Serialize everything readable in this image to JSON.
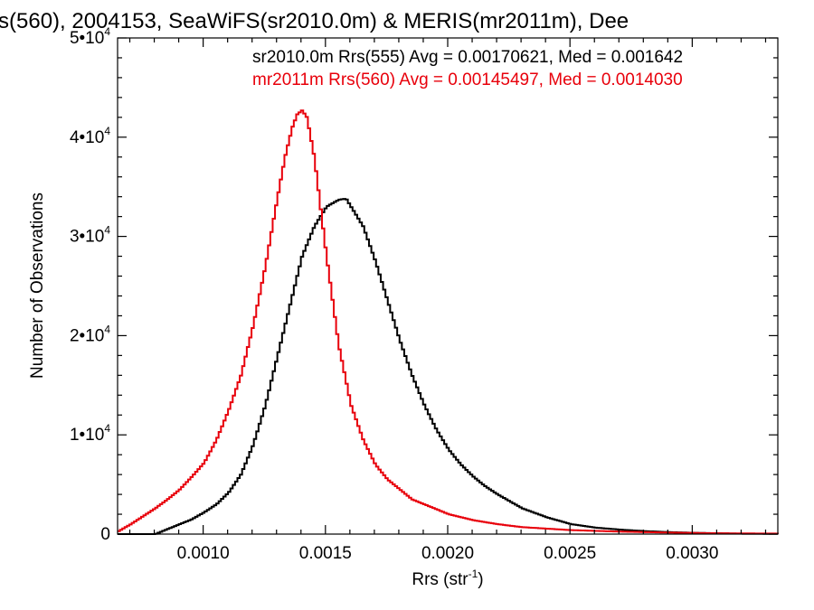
{
  "chart_data": {
    "type": "line",
    "title": "s(560), 2004153, SeaWiFS(sr2010.0m) & MERIS(mr2011m), Dee",
    "xlabel": "Rrs (str",
    "xlabel_sup": "-1",
    "xlabel_end": ")",
    "ylabel": "Number of Observations",
    "xlim": [
      0.00065,
      0.00335
    ],
    "ylim": [
      0,
      50000
    ],
    "x_ticks": [
      {
        "value": 0.001,
        "label": "0.0010"
      },
      {
        "value": 0.0015,
        "label": "0.0015"
      },
      {
        "value": 0.002,
        "label": "0.0020"
      },
      {
        "value": 0.0025,
        "label": "0.0025"
      },
      {
        "value": 0.003,
        "label": "0.0030"
      }
    ],
    "y_ticks": [
      {
        "value": 0,
        "label": "0",
        "exp": ""
      },
      {
        "value": 10000,
        "label": "1•10",
        "exp": "4"
      },
      {
        "value": 20000,
        "label": "2•10",
        "exp": "4"
      },
      {
        "value": 30000,
        "label": "3•10",
        "exp": "4"
      },
      {
        "value": 40000,
        "label": "4•10",
        "exp": "4"
      },
      {
        "value": 50000,
        "label": "5•10",
        "exp": "4"
      }
    ],
    "annotations": [
      {
        "text": "sr2010.0m Rrs(555) Avg = 0.00170621, Med = 0.001642",
        "color": "#000000"
      },
      {
        "text": "mr2011m Rrs(560) Avg = 0.00145497, Med = 0.0014030",
        "color": "#e8000b"
      }
    ],
    "series": [
      {
        "color": "#000000",
        "x": [
          0.00065,
          0.0008,
          0.00085,
          0.0009,
          0.00095,
          0.001,
          0.00105,
          0.0011,
          0.00115,
          0.0012,
          0.00125,
          0.0013,
          0.00135,
          0.0014,
          0.00145,
          0.0015,
          0.00155,
          0.00158,
          0.0016,
          0.00165,
          0.0017,
          0.00175,
          0.0018,
          0.00185,
          0.0019,
          0.00195,
          0.002,
          0.00205,
          0.0021,
          0.00215,
          0.0022,
          0.00225,
          0.0023,
          0.0024,
          0.0025,
          0.0026,
          0.0027,
          0.0028,
          0.0029,
          0.003,
          0.0031,
          0.0032,
          0.00335
        ],
        "y": [
          0,
          0,
          500,
          1000,
          1500,
          2200,
          3000,
          4200,
          6000,
          9000,
          13000,
          18000,
          23000,
          28000,
          31000,
          33000,
          33700,
          33800,
          33000,
          31000,
          27500,
          23500,
          19500,
          16000,
          13000,
          10500,
          8500,
          7000,
          5800,
          4800,
          4000,
          3300,
          2600,
          1700,
          1000,
          650,
          450,
          300,
          200,
          130,
          80,
          40,
          20
        ]
      },
      {
        "color": "#e8000b",
        "x": [
          0.00065,
          0.0007,
          0.00075,
          0.0008,
          0.00085,
          0.0009,
          0.00095,
          0.001,
          0.00105,
          0.0011,
          0.00115,
          0.0012,
          0.00125,
          0.0013,
          0.00133,
          0.00136,
          0.00138,
          0.0014,
          0.00142,
          0.00145,
          0.00148,
          0.0015,
          0.00155,
          0.0016,
          0.00165,
          0.0017,
          0.00175,
          0.0018,
          0.00185,
          0.0019,
          0.002,
          0.0021,
          0.0022,
          0.0023,
          0.0025,
          0.0027,
          0.0029,
          0.0031,
          0.00335
        ],
        "y": [
          300,
          1000,
          1800,
          2600,
          3500,
          4500,
          5800,
          7200,
          9500,
          12500,
          16000,
          21000,
          27000,
          34000,
          38000,
          41000,
          42300,
          42700,
          42000,
          38000,
          32000,
          28000,
          19000,
          13000,
          9500,
          7000,
          5500,
          4500,
          3500,
          3000,
          2000,
          1400,
          1000,
          700,
          400,
          250,
          150,
          80,
          50
        ]
      }
    ]
  }
}
